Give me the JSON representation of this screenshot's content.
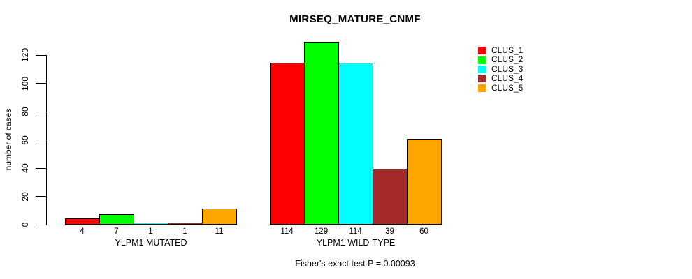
{
  "chart_data": {
    "type": "bar",
    "title": "MIRSEQ_MATURE_CNMF",
    "ylabel": "number of cases",
    "xlabel": "",
    "annotation": "Fisher's exact test P = 0.00093",
    "categories": [
      "YLPM1 MUTATED",
      "YLPM1 WILD-TYPE"
    ],
    "series": [
      {
        "name": "CLUS_1",
        "color": "#FF0000",
        "values": [
          4,
          114
        ]
      },
      {
        "name": "CLUS_2",
        "color": "#00FF00",
        "values": [
          7,
          129
        ]
      },
      {
        "name": "CLUS_3",
        "color": "#00FFFF",
        "values": [
          1,
          114
        ]
      },
      {
        "name": "CLUS_4",
        "color": "#A52A2A",
        "values": [
          1,
          39
        ]
      },
      {
        "name": "CLUS_5",
        "color": "#FFA500",
        "values": [
          11,
          60
        ]
      }
    ],
    "bar_value_labels": [
      [
        4,
        7,
        1,
        1,
        11
      ],
      [
        114,
        129,
        114,
        39,
        60
      ]
    ],
    "yticks": [
      0,
      20,
      40,
      60,
      80,
      100,
      120
    ],
    "ylim": [
      0,
      130
    ],
    "grid": false,
    "legend_position": "outside-top-right",
    "axis_color": "#000000",
    "bar_border_color": "#000000"
  }
}
